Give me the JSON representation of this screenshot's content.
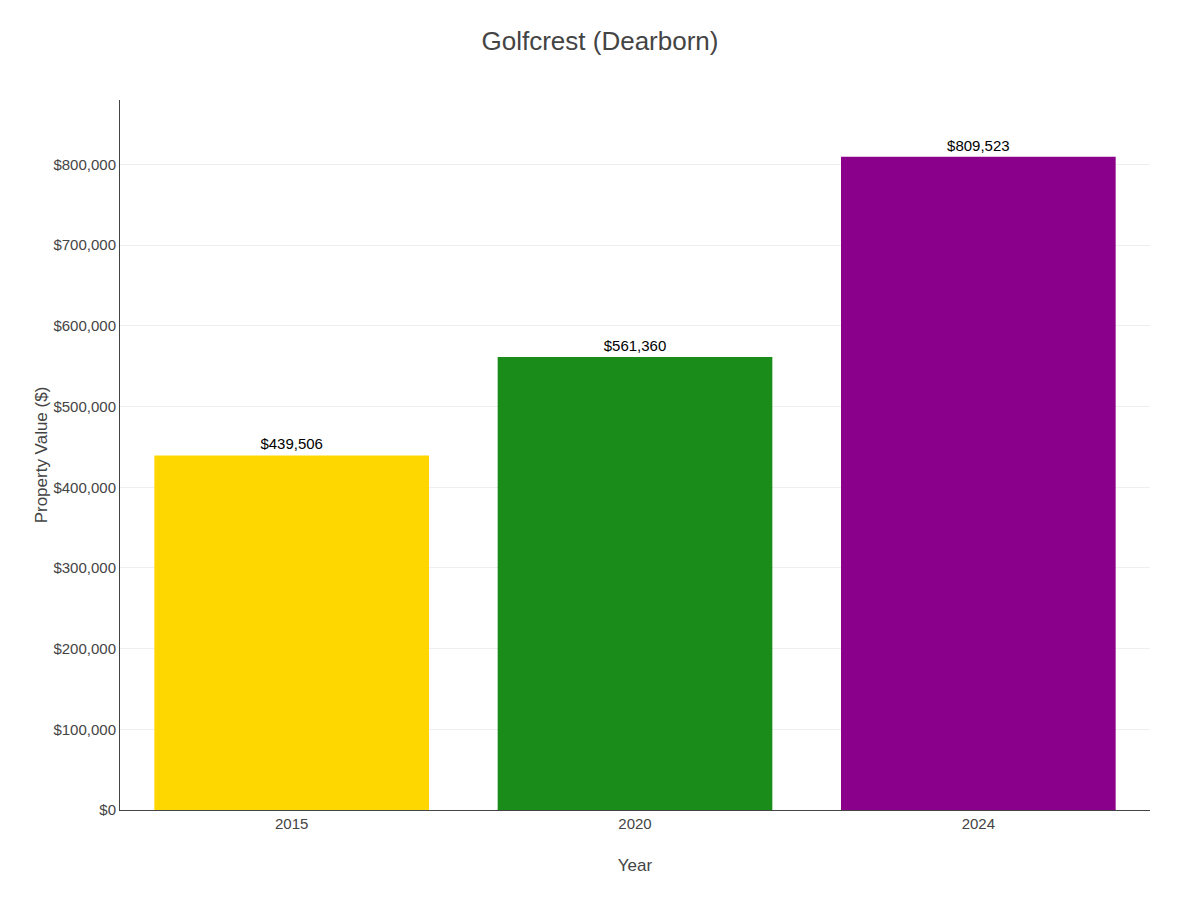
{
  "chart_data": {
    "type": "bar",
    "title": "Golfcrest (Dearborn)",
    "xlabel": "Year",
    "ylabel": "Property Value ($)",
    "categories": [
      "2015",
      "2020",
      "2024"
    ],
    "values": [
      439506,
      561360,
      809523
    ],
    "value_labels": [
      "$439,506",
      "$561,360",
      "$809,523"
    ],
    "data_labels": true,
    "colors": [
      "#FFD700",
      "#1A8C1A",
      "#8B008B"
    ],
    "ylim": [
      0,
      880000
    ],
    "yticks": [
      {
        "value": 0,
        "label": "$0"
      },
      {
        "value": 100000,
        "label": "$100,000"
      },
      {
        "value": 200000,
        "label": "$200,000"
      },
      {
        "value": 300000,
        "label": "$300,000"
      },
      {
        "value": 400000,
        "label": "$400,000"
      },
      {
        "value": 500000,
        "label": "$500,000"
      },
      {
        "value": 600000,
        "label": "$600,000"
      },
      {
        "value": 700000,
        "label": "$700,000"
      },
      {
        "value": 800000,
        "label": "$800,000"
      }
    ],
    "grid": true
  }
}
